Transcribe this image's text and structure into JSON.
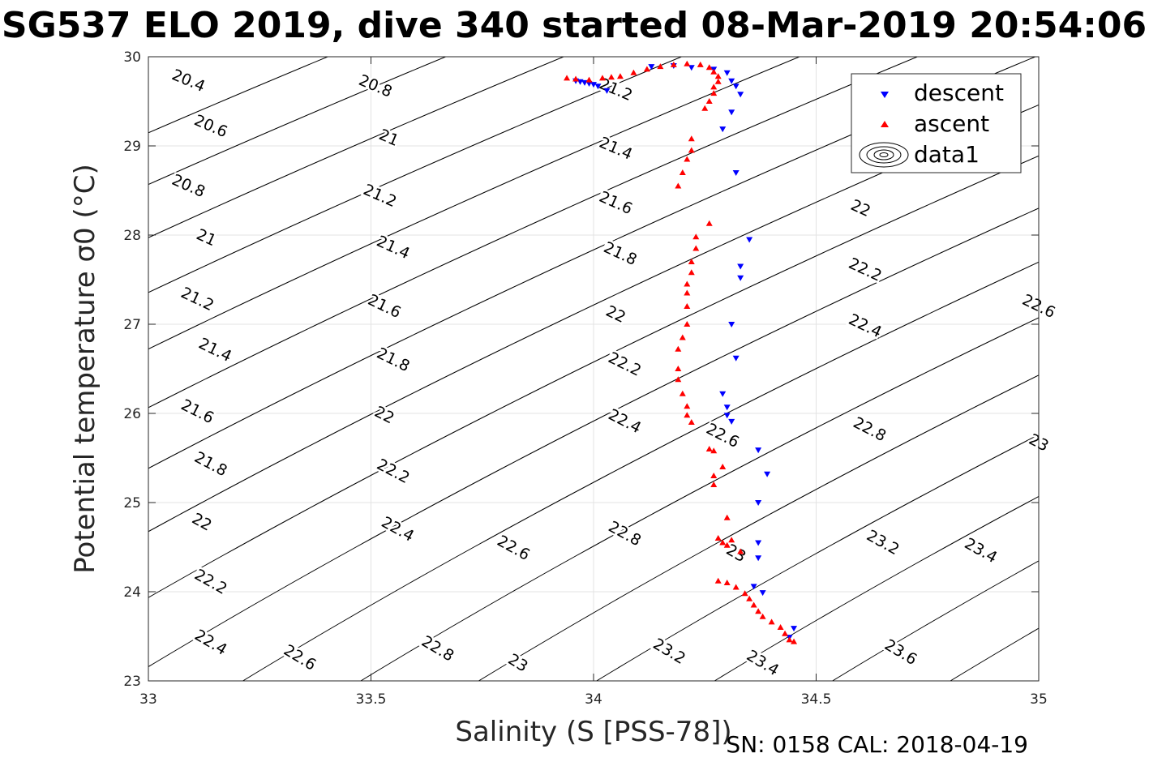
{
  "chart_data": {
    "type": "scatter",
    "title": "SG537 ELO 2019, dive 340 started 08-Mar-2019 20:54:06",
    "xlabel": "Salinity (S [PSS-78])",
    "ylabel": "Potential temperature σ0 (°C)",
    "footer": "SN: 0158  CAL: 2018-04-19",
    "xlim": [
      33,
      35
    ],
    "ylim": [
      23,
      30
    ],
    "x_ticks": [
      "33",
      "33.5",
      "34",
      "34.5",
      "35"
    ],
    "y_ticks": [
      "23",
      "24",
      "25",
      "26",
      "27",
      "28",
      "29",
      "30"
    ],
    "grid": true,
    "legend_position": "top-right",
    "colors": {
      "descent": "#0000ff",
      "ascent": "#ff0000",
      "contour": "#000000"
    },
    "contours": {
      "levels": [
        20.4,
        20.6,
        20.8,
        21,
        21.2,
        21.4,
        21.6,
        21.8,
        22,
        22.2,
        22.4,
        22.6,
        22.8,
        23,
        23.2,
        23.4,
        23.6
      ],
      "labels": [
        {
          "text": "20.4",
          "s": 33.09,
          "t": 29.73
        },
        {
          "text": "20.6",
          "s": 33.14,
          "t": 29.22
        },
        {
          "text": "20.8",
          "s": 33.09,
          "t": 28.55
        },
        {
          "text": "21",
          "s": 33.13,
          "t": 27.97
        },
        {
          "text": "21.2",
          "s": 33.11,
          "t": 27.28
        },
        {
          "text": "21.4",
          "s": 33.15,
          "t": 26.71
        },
        {
          "text": "21.6",
          "s": 33.11,
          "t": 26.02
        },
        {
          "text": "21.8",
          "s": 33.14,
          "t": 25.43
        },
        {
          "text": "22",
          "s": 33.12,
          "t": 24.78
        },
        {
          "text": "22.2",
          "s": 33.14,
          "t": 24.11
        },
        {
          "text": "22.4",
          "s": 33.14,
          "t": 23.43
        },
        {
          "text": "22.6",
          "s": 33.34,
          "t": 23.26
        },
        {
          "text": "22.8",
          "s": 33.65,
          "t": 23.36
        },
        {
          "text": "23",
          "s": 33.83,
          "t": 23.2
        },
        {
          "text": "23.2",
          "s": 34.17,
          "t": 23.33
        },
        {
          "text": "23.4",
          "s": 34.38,
          "t": 23.2
        },
        {
          "text": "23.6",
          "s": 34.69,
          "t": 23.32
        },
        {
          "text": "20.8",
          "s": 33.51,
          "t": 29.67
        },
        {
          "text": "21",
          "s": 33.54,
          "t": 29.09
        },
        {
          "text": "21.2",
          "s": 33.52,
          "t": 28.44
        },
        {
          "text": "21.4",
          "s": 33.55,
          "t": 27.86
        },
        {
          "text": "21.6",
          "s": 33.53,
          "t": 27.2
        },
        {
          "text": "21.8",
          "s": 33.55,
          "t": 26.6
        },
        {
          "text": "22",
          "s": 33.53,
          "t": 25.98
        },
        {
          "text": "22.2",
          "s": 33.55,
          "t": 25.35
        },
        {
          "text": "22.4",
          "s": 33.56,
          "t": 24.7
        },
        {
          "text": "22.6",
          "s": 33.82,
          "t": 24.49
        },
        {
          "text": "21.2",
          "s": 34.05,
          "t": 29.63
        },
        {
          "text": "21.4",
          "s": 34.05,
          "t": 28.97
        },
        {
          "text": "21.6",
          "s": 34.05,
          "t": 28.36
        },
        {
          "text": "21.8",
          "s": 34.06,
          "t": 27.79
        },
        {
          "text": "22",
          "s": 34.05,
          "t": 27.11
        },
        {
          "text": "22.2",
          "s": 34.07,
          "t": 26.55
        },
        {
          "text": "22.4",
          "s": 34.07,
          "t": 25.91
        },
        {
          "text": "22.6",
          "s": 34.29,
          "t": 25.75
        },
        {
          "text": "22.8",
          "s": 34.07,
          "t": 24.65
        },
        {
          "text": "23",
          "s": 34.32,
          "t": 24.43
        },
        {
          "text": "22",
          "s": 34.6,
          "t": 28.3
        },
        {
          "text": "22.2",
          "s": 34.61,
          "t": 27.61
        },
        {
          "text": "22.4",
          "s": 34.61,
          "t": 26.98
        },
        {
          "text": "22.6",
          "s": 35.0,
          "t": 27.2
        },
        {
          "text": "22.8",
          "s": 34.62,
          "t": 25.82
        },
        {
          "text": "23",
          "s": 35.0,
          "t": 25.67
        },
        {
          "text": "23.2",
          "s": 34.65,
          "t": 24.55
        },
        {
          "text": "23.4",
          "s": 34.87,
          "t": 24.46
        }
      ]
    },
    "series": [
      {
        "name": "descent",
        "marker": "triangle-down",
        "points": [
          [
            33.96,
            29.73
          ],
          [
            33.97,
            29.72
          ],
          [
            33.98,
            29.71
          ],
          [
            33.99,
            29.7
          ],
          [
            34.0,
            29.69
          ],
          [
            34.01,
            29.67
          ],
          [
            34.03,
            29.62
          ],
          [
            34.13,
            29.89
          ],
          [
            34.18,
            29.9
          ],
          [
            34.22,
            29.88
          ],
          [
            34.27,
            29.86
          ],
          [
            34.3,
            29.82
          ],
          [
            34.31,
            29.73
          ],
          [
            34.32,
            29.67
          ],
          [
            34.33,
            29.58
          ],
          [
            34.31,
            29.38
          ],
          [
            34.29,
            29.19
          ],
          [
            34.32,
            28.7
          ],
          [
            34.35,
            27.95
          ],
          [
            34.33,
            27.65
          ],
          [
            34.33,
            27.52
          ],
          [
            34.31,
            27.0
          ],
          [
            34.32,
            26.62
          ],
          [
            34.29,
            26.22
          ],
          [
            34.3,
            26.07
          ],
          [
            34.3,
            25.98
          ],
          [
            34.31,
            25.91
          ],
          [
            34.37,
            25.59
          ],
          [
            34.39,
            25.32
          ],
          [
            34.37,
            25.0
          ],
          [
            34.37,
            24.55
          ],
          [
            34.37,
            24.38
          ],
          [
            34.36,
            24.06
          ],
          [
            34.38,
            23.99
          ],
          [
            34.45,
            23.59
          ],
          [
            34.44,
            23.49
          ]
        ]
      },
      {
        "name": "ascent",
        "marker": "triangle-up",
        "points": [
          [
            33.94,
            29.76
          ],
          [
            33.96,
            29.75
          ],
          [
            33.99,
            29.74
          ],
          [
            34.02,
            29.76
          ],
          [
            34.04,
            29.77
          ],
          [
            34.06,
            29.78
          ],
          [
            34.09,
            29.82
          ],
          [
            34.12,
            29.86
          ],
          [
            34.15,
            29.89
          ],
          [
            34.18,
            29.91
          ],
          [
            34.21,
            29.92
          ],
          [
            34.24,
            29.91
          ],
          [
            34.26,
            29.88
          ],
          [
            34.27,
            29.83
          ],
          [
            34.28,
            29.78
          ],
          [
            34.28,
            29.72
          ],
          [
            34.27,
            29.66
          ],
          [
            34.27,
            29.59
          ],
          [
            34.26,
            29.5
          ],
          [
            34.25,
            29.42
          ],
          [
            34.22,
            29.08
          ],
          [
            34.22,
            28.95
          ],
          [
            34.21,
            28.85
          ],
          [
            34.2,
            28.7
          ],
          [
            34.19,
            28.55
          ],
          [
            34.26,
            28.13
          ],
          [
            34.23,
            27.98
          ],
          [
            34.23,
            27.85
          ],
          [
            34.22,
            27.7
          ],
          [
            34.22,
            27.58
          ],
          [
            34.21,
            27.45
          ],
          [
            34.21,
            27.35
          ],
          [
            34.21,
            27.2
          ],
          [
            34.21,
            27.0
          ],
          [
            34.2,
            26.85
          ],
          [
            34.19,
            26.72
          ],
          [
            34.19,
            26.5
          ],
          [
            34.19,
            26.38
          ],
          [
            34.2,
            26.22
          ],
          [
            34.21,
            26.08
          ],
          [
            34.21,
            25.98
          ],
          [
            34.22,
            25.9
          ],
          [
            34.26,
            25.6
          ],
          [
            34.27,
            25.58
          ],
          [
            34.29,
            25.4
          ],
          [
            34.27,
            25.3
          ],
          [
            34.27,
            25.2
          ],
          [
            34.3,
            24.83
          ],
          [
            34.28,
            24.6
          ],
          [
            34.29,
            24.55
          ],
          [
            34.3,
            24.52
          ],
          [
            34.31,
            24.58
          ],
          [
            34.33,
            24.45
          ],
          [
            34.28,
            24.12
          ],
          [
            34.3,
            24.1
          ],
          [
            34.32,
            24.05
          ],
          [
            34.34,
            23.98
          ],
          [
            34.35,
            23.92
          ],
          [
            34.36,
            23.85
          ],
          [
            34.37,
            23.78
          ],
          [
            34.38,
            23.72
          ],
          [
            34.4,
            23.66
          ],
          [
            34.42,
            23.6
          ],
          [
            34.43,
            23.53
          ],
          [
            34.44,
            23.46
          ],
          [
            34.45,
            23.44
          ]
        ]
      }
    ],
    "legend": [
      "descent",
      "ascent",
      "data1"
    ]
  }
}
